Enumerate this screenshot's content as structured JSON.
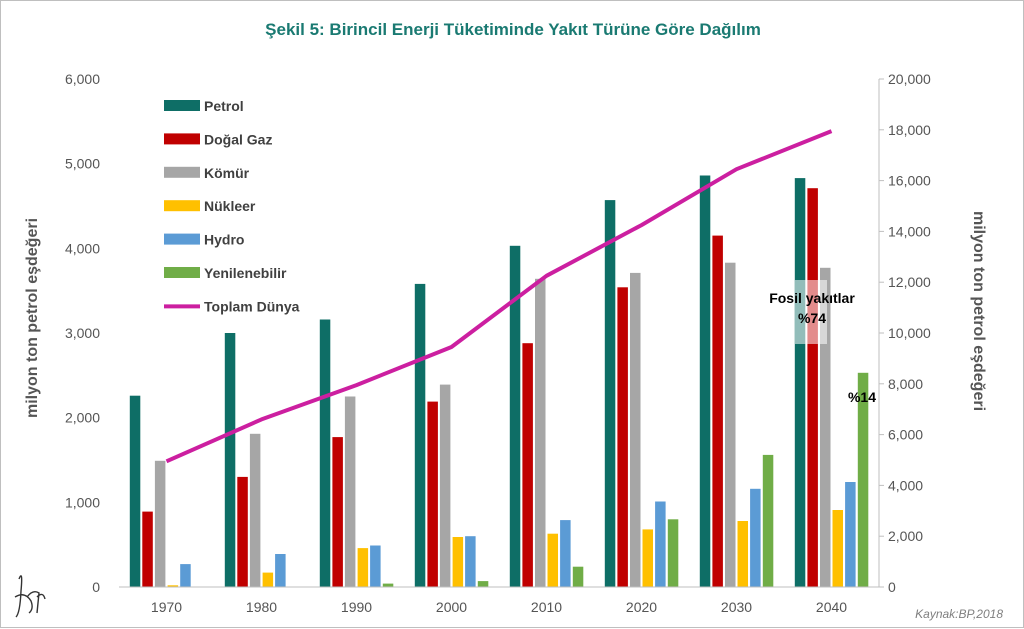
{
  "chart_data": {
    "type": "bar",
    "title": "Şekil 5: Birincil Enerji Tüketiminde Yakıt Türüne Göre Dağılım",
    "ylabel": "milyon ton petrol eşdeğeri",
    "y2label": "milyon ton petrol eşdeğeri",
    "ylim": [
      0,
      6000
    ],
    "y2lim": [
      0,
      20000
    ],
    "yticks": [
      "0",
      "1,000",
      "2,000",
      "3,000",
      "4,000",
      "5,000",
      "6,000"
    ],
    "y2ticks": [
      "0",
      "2,000",
      "4,000",
      "6,000",
      "8,000",
      "10,000",
      "12,000",
      "14,000",
      "16,000",
      "18,000",
      "20,000"
    ],
    "categories": [
      "1970",
      "1980",
      "1990",
      "2000",
      "2010",
      "2020",
      "2030",
      "2040"
    ],
    "series": [
      {
        "name": "Petrol",
        "color": "#0e6e66",
        "values": [
          2260,
          3000,
          3160,
          3580,
          4030,
          4570,
          4860,
          4830
        ]
      },
      {
        "name": "Doğal Gaz",
        "color": "#c00000",
        "values": [
          890,
          1300,
          1770,
          2190,
          2880,
          3540,
          4150,
          4710
        ]
      },
      {
        "name": "Kömür",
        "color": "#a6a6a6",
        "values": [
          1490,
          1810,
          2250,
          2390,
          3640,
          3710,
          3830,
          3770
        ]
      },
      {
        "name": "Nükleer",
        "color": "#ffc000",
        "values": [
          20,
          170,
          460,
          590,
          630,
          680,
          780,
          910
        ]
      },
      {
        "name": "Hydro",
        "color": "#5b9bd5",
        "values": [
          270,
          390,
          490,
          600,
          790,
          1010,
          1160,
          1240
        ]
      },
      {
        "name": "Yenilenebilir",
        "color": "#70ad47",
        "values": [
          0,
          0,
          40,
          70,
          240,
          800,
          1560,
          2530
        ]
      }
    ],
    "line_series": {
      "name": "Toplam Dünya",
      "color": "#cc1fa0",
      "axis": "right",
      "values": [
        4950,
        6600,
        7950,
        9450,
        12250,
        14250,
        16450,
        17950
      ]
    },
    "annotations": [
      {
        "line1": "Fosil yakıtlar",
        "line2": "%74"
      },
      {
        "text": "%14"
      }
    ],
    "source": "Kaynak:BP,2018",
    "legend_position": "top-left inside plot",
    "grid": false
  }
}
